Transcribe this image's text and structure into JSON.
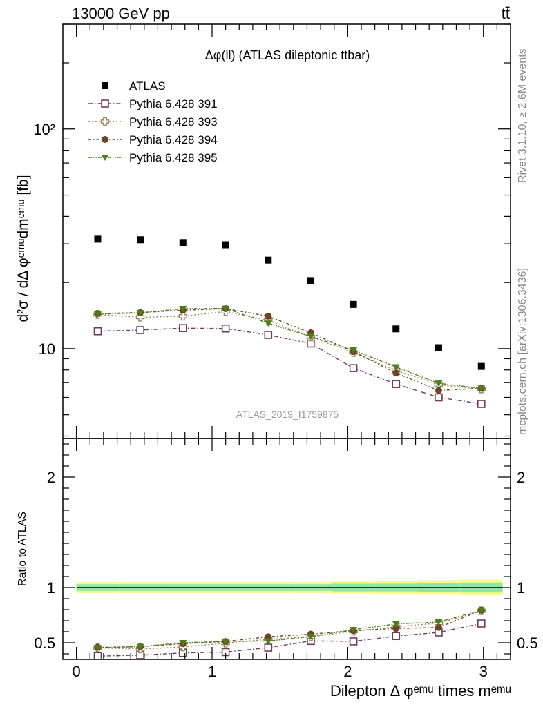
{
  "header": {
    "energy_label": "13000 GeV pp",
    "process_label": "tt̄"
  },
  "side_labels": {
    "rivet": "Rivet 3.1.10, ≥ 2.6M events",
    "mcplots": "mcplots.cern.ch [arXiv:1306.3436]"
  },
  "analysis_id": "ATLAS_2019_I1759875",
  "chart_data": [
    {
      "type": "scatter",
      "title": "Δφ(ll) (ATLAS dileptonic ttbar)",
      "ylabel": "d²σ / dΔ φᵉᵐᵘdmᵉᵐᵘ [fb]",
      "xlabel": "",
      "log_y": true,
      "xlim": [
        -0.1,
        3.2
      ],
      "ylim": [
        3.9,
        300
      ],
      "yticks": [
        {
          "v": 10,
          "label": "10"
        },
        {
          "v": 100,
          "label": "10²"
        }
      ],
      "legend_position": "top-left",
      "x": [
        0.157,
        0.471,
        0.785,
        1.1,
        1.414,
        1.728,
        2.042,
        2.356,
        2.67,
        2.985
      ],
      "series": [
        {
          "name": "ATLAS",
          "color": "#000000",
          "marker": "filled-square",
          "line": false,
          "values": [
            31.5,
            31.3,
            30.4,
            29.7,
            25.3,
            20.4,
            15.9,
            12.3,
            10.1,
            8.3
          ]
        },
        {
          "name": "Pythia 6.428 391",
          "color": "#6e3d57",
          "marker": "open-square",
          "line": true,
          "values": [
            12.0,
            12.15,
            12.4,
            12.35,
            11.55,
            10.55,
            8.15,
            6.9,
            6.0,
            5.6
          ]
        },
        {
          "name": "Pythia 6.428 393",
          "color": "#9a8259",
          "marker": "open-cross",
          "line": true,
          "values": [
            14.3,
            13.9,
            14.05,
            14.75,
            13.45,
            11.3,
            9.6,
            7.95,
            6.85,
            6.55
          ]
        },
        {
          "name": "Pythia 6.428 394",
          "color": "#6b4526",
          "marker": "filled-circle",
          "line": true,
          "values": [
            14.45,
            14.6,
            14.95,
            15.2,
            14.05,
            11.8,
            9.7,
            7.75,
            6.45,
            6.6
          ]
        },
        {
          "name": "Pythia 6.428 395",
          "color": "#4d7e1a",
          "marker": "filled-triangle-down",
          "line": true,
          "values": [
            14.35,
            14.55,
            15.2,
            15.25,
            13.05,
            11.35,
            9.85,
            8.25,
            6.95,
            6.6
          ]
        }
      ]
    },
    {
      "type": "scatter",
      "ylabel": "Ratio to ATLAS",
      "xlabel": "Dilepton Δ φᵉᵐᵘ times mᵉᵐᵘ",
      "log_y": false,
      "xlim": [
        -0.1,
        3.2
      ],
      "ylim": [
        0.35,
        2.35
      ],
      "yticks": [
        {
          "v": 0.5,
          "label": "0.5"
        },
        {
          "v": 1,
          "label": "1"
        },
        {
          "v": 2,
          "label": "2"
        }
      ],
      "xticks": [
        {
          "v": 0,
          "label": "0"
        },
        {
          "v": 1,
          "label": "1"
        },
        {
          "v": 2,
          "label": "2"
        },
        {
          "v": 3,
          "label": "3"
        }
      ],
      "band_edges": [
        0,
        0.314,
        0.628,
        0.942,
        1.257,
        1.571,
        1.885,
        2.199,
        2.513,
        2.827,
        3.142
      ],
      "band_inner_halfwidth": [
        0.03,
        0.03,
        0.03,
        0.03,
        0.03,
        0.03,
        0.035,
        0.035,
        0.04,
        0.045
      ],
      "band_outer_halfwidth": [
        0.05,
        0.05,
        0.05,
        0.05,
        0.05,
        0.05,
        0.055,
        0.06,
        0.065,
        0.07
      ],
      "band_colors": {
        "outer": "#fbf98c",
        "inner": "#8ee8a5",
        "line": "#000000"
      },
      "x": [
        0.157,
        0.471,
        0.785,
        1.1,
        1.414,
        1.728,
        2.042,
        2.356,
        2.67,
        2.985
      ],
      "series": [
        {
          "name": "Pythia 6.428 391",
          "color": "#6e3d57",
          "marker": "open-square",
          "line": true,
          "values": [
            0.38,
            0.388,
            0.408,
            0.416,
            0.456,
            0.517,
            0.513,
            0.561,
            0.594,
            0.675
          ]
        },
        {
          "name": "Pythia 6.428 393",
          "color": "#9a8259",
          "marker": "open-cross",
          "line": true,
          "values": [
            0.454,
            0.444,
            0.462,
            0.497,
            0.532,
            0.554,
            0.604,
            0.646,
            0.678,
            0.79
          ]
        },
        {
          "name": "Pythia 6.428 394",
          "color": "#6b4526",
          "marker": "filled-circle",
          "line": true,
          "values": [
            0.459,
            0.466,
            0.492,
            0.512,
            0.555,
            0.578,
            0.61,
            0.63,
            0.639,
            0.795
          ]
        },
        {
          "name": "Pythia 6.428 395",
          "color": "#4d7e1a",
          "marker": "filled-triangle-down",
          "line": true,
          "values": [
            0.455,
            0.465,
            0.5,
            0.513,
            0.516,
            0.556,
            0.619,
            0.671,
            0.688,
            0.795
          ]
        }
      ]
    }
  ]
}
